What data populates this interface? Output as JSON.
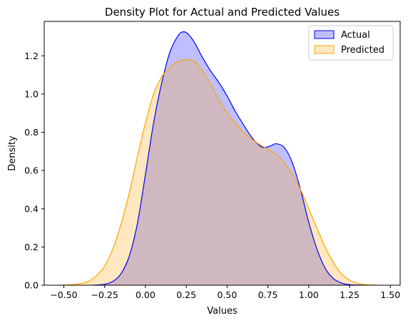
{
  "chart_data": {
    "type": "area",
    "title": "Density Plot for Actual and Predicted Values",
    "xlabel": "Values",
    "ylabel": "Density",
    "xlim": [
      -0.62,
      1.56
    ],
    "ylim": [
      0,
      1.38
    ],
    "xticks": [
      -0.5,
      -0.25,
      0.0,
      0.25,
      0.5,
      0.75,
      1.0,
      1.25,
      1.5
    ],
    "xtick_labels": [
      "−0.50",
      "−0.25",
      "0.00",
      "0.25",
      "0.50",
      "0.75",
      "1.00",
      "1.25",
      "1.50"
    ],
    "yticks": [
      0.0,
      0.2,
      0.4,
      0.6,
      0.8,
      1.0,
      1.2
    ],
    "ytick_labels": [
      "0.0",
      "0.2",
      "0.4",
      "0.6",
      "0.8",
      "1.0",
      "1.2"
    ],
    "grid": false,
    "legend_position": "top-right",
    "series": [
      {
        "name": "Actual",
        "line_color": "#0000ff",
        "fill_color": "#0000ff",
        "fill_opacity": 0.25,
        "points": [
          [
            -0.33,
            0.0
          ],
          [
            -0.25,
            0.005
          ],
          [
            -0.2,
            0.02
          ],
          [
            -0.15,
            0.06
          ],
          [
            -0.1,
            0.15
          ],
          [
            -0.05,
            0.32
          ],
          [
            0.0,
            0.58
          ],
          [
            0.05,
            0.85
          ],
          [
            0.1,
            1.06
          ],
          [
            0.15,
            1.22
          ],
          [
            0.2,
            1.305
          ],
          [
            0.23,
            1.325
          ],
          [
            0.26,
            1.315
          ],
          [
            0.3,
            1.27
          ],
          [
            0.35,
            1.19
          ],
          [
            0.4,
            1.12
          ],
          [
            0.45,
            1.06
          ],
          [
            0.5,
            0.99
          ],
          [
            0.55,
            0.91
          ],
          [
            0.6,
            0.84
          ],
          [
            0.65,
            0.775
          ],
          [
            0.7,
            0.73
          ],
          [
            0.73,
            0.72
          ],
          [
            0.77,
            0.73
          ],
          [
            0.8,
            0.74
          ],
          [
            0.85,
            0.72
          ],
          [
            0.9,
            0.64
          ],
          [
            0.95,
            0.5
          ],
          [
            1.0,
            0.33
          ],
          [
            1.05,
            0.19
          ],
          [
            1.1,
            0.09
          ],
          [
            1.15,
            0.035
          ],
          [
            1.2,
            0.012
          ],
          [
            1.25,
            0.003
          ],
          [
            1.33,
            0.0
          ]
        ]
      },
      {
        "name": "Predicted",
        "line_color": "#ffa500",
        "fill_color": "#ffa500",
        "fill_opacity": 0.25,
        "points": [
          [
            -0.52,
            0.0
          ],
          [
            -0.45,
            0.003
          ],
          [
            -0.4,
            0.008
          ],
          [
            -0.35,
            0.02
          ],
          [
            -0.3,
            0.05
          ],
          [
            -0.25,
            0.1
          ],
          [
            -0.2,
            0.19
          ],
          [
            -0.15,
            0.32
          ],
          [
            -0.1,
            0.48
          ],
          [
            -0.05,
            0.67
          ],
          [
            0.0,
            0.85
          ],
          [
            0.05,
            1.0
          ],
          [
            0.1,
            1.09
          ],
          [
            0.15,
            1.14
          ],
          [
            0.2,
            1.17
          ],
          [
            0.25,
            1.18
          ],
          [
            0.3,
            1.17
          ],
          [
            0.35,
            1.12
          ],
          [
            0.4,
            1.05
          ],
          [
            0.45,
            0.97
          ],
          [
            0.5,
            0.9
          ],
          [
            0.55,
            0.85
          ],
          [
            0.6,
            0.8
          ],
          [
            0.65,
            0.765
          ],
          [
            0.7,
            0.735
          ],
          [
            0.75,
            0.71
          ],
          [
            0.8,
            0.685
          ],
          [
            0.85,
            0.64
          ],
          [
            0.9,
            0.58
          ],
          [
            0.95,
            0.5
          ],
          [
            1.0,
            0.4
          ],
          [
            1.05,
            0.3
          ],
          [
            1.1,
            0.2
          ],
          [
            1.15,
            0.12
          ],
          [
            1.2,
            0.06
          ],
          [
            1.25,
            0.027
          ],
          [
            1.3,
            0.01
          ],
          [
            1.35,
            0.003
          ],
          [
            1.43,
            0.0
          ]
        ]
      }
    ]
  }
}
